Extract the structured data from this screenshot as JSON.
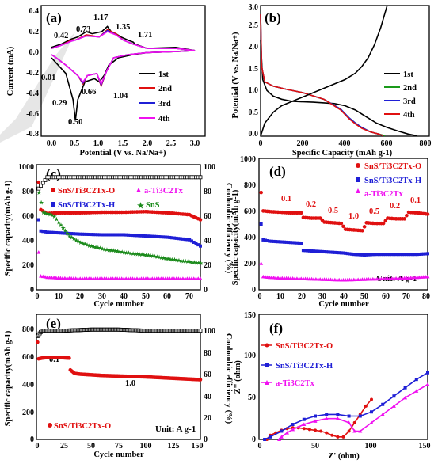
{
  "panels": {
    "a": {
      "label": "(a)",
      "xlabel": "Potential (V vs. Na/Na+)",
      "ylabel": "Current (mA)",
      "xticks": [
        "0.0",
        "0.5",
        "1.0",
        "1.5",
        "2.0",
        "2.5",
        "3.0"
      ],
      "yticks": [
        "0.4",
        "0.2",
        "0.0",
        "-0.2",
        "-0.4",
        "-0.6",
        "-0.8"
      ],
      "peak_labels": [
        "0.42",
        "0.73",
        "1.17",
        "1.35",
        "1.71",
        "0.01",
        "0.29",
        "0.50",
        "0.66",
        "1.04"
      ],
      "legend": [
        "1st",
        "2nd",
        "3rd",
        "4th"
      ]
    },
    "b": {
      "label": "(b)",
      "xlabel": "Specific Capacity (mAh g-1)",
      "ylabel": "Potential (V vs. Na/Na+)",
      "xticks": [
        "0",
        "200",
        "400",
        "600",
        "800"
      ],
      "yticks": [
        "0.0",
        "0.5",
        "1.0",
        "1.5",
        "2.0",
        "2.5",
        "3.0"
      ],
      "legend": [
        "1st",
        "2nd",
        "3rd",
        "4th"
      ]
    },
    "c": {
      "label": "(c)",
      "xlabel": "Cycle number",
      "ylabel": "Specific capacity(mAh g-1)",
      "ylabel2": "Coulombic efficiency (%)",
      "xticks": [
        "0",
        "10",
        "20",
        "30",
        "40",
        "50",
        "60",
        "70"
      ],
      "yticks": [
        "0",
        "200",
        "400",
        "600",
        "800",
        "1000"
      ],
      "y2ticks": [
        "0",
        "20",
        "40",
        "60",
        "80",
        "100"
      ],
      "legend": [
        "SnS/Ti3C2Tx-O",
        "a-Ti3C2Tx",
        "SnS/Ti3C2Tx-H",
        "SnS"
      ]
    },
    "d": {
      "label": "(d)",
      "xlabel": "Cycle number",
      "ylabel": "Specific capacity(mAh g-1)",
      "xticks": [
        "0",
        "10",
        "20",
        "30",
        "40",
        "50",
        "60",
        "70",
        "80"
      ],
      "yticks": [
        "0",
        "200",
        "400",
        "600",
        "800",
        "1000"
      ],
      "legend": [
        "SnS/Ti3C2Tx-O",
        "SnS/Ti3C2Tx-H",
        "a-Ti3C2Tx"
      ],
      "rates": [
        "0.1",
        "0.2",
        "0.5",
        "1.0",
        "0.5",
        "0.2",
        "0.1"
      ],
      "unit": "Unit: A g-1"
    },
    "e": {
      "label": "(e)",
      "xlabel": "Cycle number",
      "ylabel": "Specific capacity(mAh g-1)",
      "ylabel2": "Coulombic efficiency (%)",
      "xticks": [
        "0",
        "25",
        "50",
        "75",
        "100",
        "125",
        "150"
      ],
      "yticks": [
        "0",
        "200",
        "400",
        "600",
        "800"
      ],
      "y2ticks": [
        "0",
        "20",
        "40",
        "60",
        "80",
        "100"
      ],
      "rates": [
        "0.1",
        "1.0"
      ],
      "legend": [
        "SnS/Ti3C2Tx-O"
      ],
      "unit": "Unit: A g-1"
    },
    "f": {
      "label": "(f)",
      "xlabel": "Z' (ohm)",
      "ylabel": "-Z'' (ohm)",
      "xticks": [
        "0",
        "50",
        "100",
        "150"
      ],
      "yticks": [
        "0",
        "50",
        "100",
        "150"
      ],
      "legend": [
        "SnS/Ti3C2Tx-O",
        "SnS/Ti3C2Tx-H",
        "a-Ti3C2Tx"
      ]
    }
  },
  "colors": {
    "c1": "#000000",
    "c2": "#1a9a1a",
    "c3": "#1f1fd6",
    "c4": "#e01010",
    "pink": "#f010f0",
    "green": "#1a8a1a"
  },
  "chart_data": [
    {
      "type": "line",
      "panel": "a",
      "xlim": [
        -0.2,
        3.0
      ],
      "ylim": [
        -0.8,
        0.45
      ],
      "series": [
        {
          "name": "1st",
          "x": [
            0.0,
            0.1,
            0.3,
            0.45,
            0.5,
            0.55,
            0.7,
            0.9,
            1.0,
            1.1,
            1.2,
            1.4,
            1.7,
            2.0,
            2.6,
            3.0,
            2.6,
            2.0,
            1.75,
            1.71,
            1.6,
            1.45,
            1.35,
            1.25,
            1.17,
            1.05,
            0.85,
            0.73,
            0.55,
            0.42,
            0.2,
            0.0
          ],
          "y": [
            -0.05,
            -0.1,
            -0.2,
            -0.45,
            -0.65,
            -0.45,
            -0.28,
            -0.25,
            -0.28,
            -0.22,
            -0.12,
            -0.05,
            -0.02,
            0.0,
            0.01,
            0.02,
            0.05,
            0.04,
            0.08,
            0.1,
            0.12,
            0.15,
            0.18,
            0.2,
            0.25,
            0.2,
            0.18,
            0.2,
            0.15,
            0.13,
            0.08,
            0.05
          ]
        },
        {
          "name": "2nd",
          "x": [
            0.0,
            0.1,
            0.3,
            0.45,
            0.55,
            0.66,
            0.75,
            0.95,
            1.04,
            1.15,
            1.3,
            1.6,
            2.0,
            2.6,
            3.0,
            2.6,
            2.0,
            1.71,
            1.5,
            1.35,
            1.17,
            1.0,
            0.73,
            0.5,
            0.42,
            0.2,
            0.0
          ],
          "y": [
            -0.02,
            -0.05,
            -0.12,
            -0.18,
            -0.22,
            -0.3,
            -0.22,
            -0.2,
            -0.32,
            -0.18,
            -0.05,
            -0.02,
            0.0,
            0.01,
            0.02,
            0.04,
            0.04,
            0.08,
            0.12,
            0.18,
            0.22,
            0.15,
            0.17,
            0.12,
            0.12,
            0.07,
            0.04
          ]
        },
        {
          "name": "3rd",
          "x": [
            0.0,
            0.1,
            0.3,
            0.45,
            0.55,
            0.66,
            0.75,
            0.95,
            1.04,
            1.15,
            1.3,
            1.6,
            2.0,
            2.6,
            3.0,
            2.6,
            2.0,
            1.71,
            1.5,
            1.35,
            1.17,
            1.0,
            0.73,
            0.5,
            0.42,
            0.2,
            0.0
          ],
          "y": [
            -0.02,
            -0.05,
            -0.12,
            -0.18,
            -0.22,
            -0.29,
            -0.22,
            -0.2,
            -0.31,
            -0.18,
            -0.05,
            -0.02,
            0.0,
            0.01,
            0.02,
            0.04,
            0.04,
            0.08,
            0.12,
            0.17,
            0.21,
            0.15,
            0.16,
            0.12,
            0.11,
            0.07,
            0.04
          ]
        },
        {
          "name": "4th",
          "x": [
            0.0,
            0.1,
            0.3,
            0.45,
            0.55,
            0.66,
            0.75,
            0.95,
            1.04,
            1.15,
            1.3,
            1.6,
            2.0,
            2.6,
            3.0,
            2.6,
            2.0,
            1.71,
            1.5,
            1.35,
            1.17,
            1.0,
            0.73,
            0.5,
            0.42,
            0.2,
            0.0
          ],
          "y": [
            -0.02,
            -0.05,
            -0.12,
            -0.18,
            -0.22,
            -0.28,
            -0.22,
            -0.2,
            -0.3,
            -0.18,
            -0.05,
            -0.02,
            0.0,
            0.01,
            0.02,
            0.04,
            0.04,
            0.08,
            0.12,
            0.17,
            0.2,
            0.15,
            0.16,
            0.12,
            0.11,
            0.07,
            0.04
          ]
        }
      ]
    },
    {
      "type": "line",
      "panel": "b",
      "xlim": [
        0,
        800
      ],
      "ylim": [
        0,
        3.0
      ],
      "series": [
        {
          "name": "1st",
          "x": [
            0,
            10,
            30,
            60,
            100,
            150,
            250,
            350,
            400,
            450,
            500,
            550,
            600,
            650,
            700,
            740
          ],
          "y": [
            2.2,
            1.3,
            1.05,
            0.92,
            0.85,
            0.8,
            0.78,
            0.75,
            0.7,
            0.6,
            0.45,
            0.3,
            0.2,
            0.12,
            0.05,
            0.01
          ]
        },
        {
          "name": "2nd",
          "x": [
            0,
            5,
            20,
            60,
            120,
            200,
            300,
            380,
            420,
            450,
            480,
            520,
            560,
            590
          ],
          "y": [
            2.8,
            1.6,
            1.25,
            1.15,
            1.08,
            1.0,
            0.85,
            0.62,
            0.42,
            0.3,
            0.2,
            0.1,
            0.05,
            0.01
          ]
        },
        {
          "name": "3rd",
          "x": [
            0,
            5,
            20,
            60,
            120,
            200,
            300,
            380,
            420,
            450,
            480,
            520,
            560,
            580
          ],
          "y": [
            2.8,
            1.6,
            1.25,
            1.15,
            1.08,
            1.0,
            0.85,
            0.62,
            0.42,
            0.3,
            0.2,
            0.1,
            0.05,
            0.01
          ]
        },
        {
          "name": "4th",
          "x": [
            0,
            5,
            20,
            60,
            120,
            200,
            300,
            380,
            420,
            450,
            480,
            520,
            560,
            580
          ],
          "y": [
            2.8,
            1.6,
            1.25,
            1.15,
            1.08,
            1.0,
            0.85,
            0.6,
            0.4,
            0.28,
            0.18,
            0.1,
            0.05,
            0.01
          ]
        },
        {
          "name": "1st charge",
          "x": [
            0,
            20,
            60,
            100,
            150,
            200,
            250,
            300,
            350,
            400,
            450,
            480,
            510,
            540,
            570,
            600
          ],
          "y": [
            0.0,
            0.3,
            0.55,
            0.7,
            0.8,
            0.9,
            1.0,
            1.1,
            1.2,
            1.3,
            1.45,
            1.6,
            1.8,
            2.1,
            2.5,
            3.0
          ]
        }
      ]
    },
    {
      "type": "scatter",
      "panel": "c",
      "xlim": [
        0,
        75
      ],
      "ylim": [
        0,
        1000
      ],
      "y2lim": [
        0,
        110
      ],
      "series": [
        {
          "name": "SnS/Ti3C2Tx-O",
          "x": [
            1,
            2,
            5,
            10,
            20,
            30,
            40,
            50,
            60,
            70,
            75
          ],
          "y": [
            860,
            640,
            610,
            615,
            615,
            620,
            620,
            625,
            615,
            600,
            560
          ]
        },
        {
          "name": "SnS/Ti3C2Tx-H",
          "x": [
            1,
            2,
            5,
            10,
            20,
            30,
            40,
            50,
            60,
            70,
            75
          ],
          "y": [
            560,
            470,
            460,
            455,
            445,
            440,
            440,
            430,
            420,
            400,
            350
          ]
        },
        {
          "name": "a-Ti3C2Tx",
          "x": [
            1,
            2,
            5,
            10,
            20,
            30,
            40,
            50,
            60,
            70,
            75
          ],
          "y": [
            300,
            110,
            100,
            95,
            90,
            90,
            90,
            90,
            90,
            90,
            90
          ]
        },
        {
          "name": "SnS",
          "x": [
            1,
            3,
            5,
            8,
            10,
            15,
            20,
            25,
            30,
            40,
            50,
            60,
            70,
            75
          ],
          "y": [
            780,
            620,
            610,
            590,
            540,
            430,
            380,
            350,
            330,
            300,
            280,
            250,
            225,
            215
          ]
        },
        {
          "name": "Coulombic efficiency",
          "x": [
            1,
            5,
            10,
            20,
            30,
            40,
            50,
            60,
            70,
            75
          ],
          "y": [
            89,
            99,
            99,
            99,
            99,
            99,
            99,
            99,
            99,
            99
          ]
        }
      ]
    },
    {
      "type": "scatter",
      "panel": "d",
      "xlim": [
        0,
        80
      ],
      "ylim": [
        0,
        1000
      ],
      "series": [
        {
          "name": "SnS/Ti3C2Tx-O",
          "x": [
            1,
            2,
            5,
            10,
            15,
            20,
            21,
            25,
            29,
            31,
            35,
            39,
            41,
            45,
            49,
            51,
            55,
            59,
            61,
            65,
            69,
            71,
            75,
            80
          ],
          "y": [
            740,
            600,
            595,
            590,
            585,
            585,
            550,
            545,
            545,
            515,
            510,
            505,
            460,
            455,
            450,
            510,
            505,
            505,
            545,
            540,
            540,
            590,
            585,
            575
          ]
        },
        {
          "name": "SnS/Ti3C2Tx-H",
          "x": [
            1,
            2,
            5,
            10,
            15,
            20,
            21,
            25,
            30,
            35,
            40,
            45,
            50,
            55,
            60,
            65,
            70,
            75,
            80
          ],
          "y": [
            500,
            380,
            370,
            365,
            360,
            355,
            300,
            295,
            290,
            285,
            280,
            270,
            265,
            270,
            270,
            270,
            270,
            270,
            275
          ]
        },
        {
          "name": "a-Ti3C2Tx",
          "x": [
            1,
            2,
            5,
            10,
            20,
            30,
            40,
            50,
            60,
            70,
            80
          ],
          "y": [
            200,
            100,
            95,
            90,
            85,
            80,
            75,
            80,
            85,
            90,
            100
          ]
        }
      ]
    },
    {
      "type": "scatter",
      "panel": "e",
      "xlim": [
        0,
        150
      ],
      "ylim": [
        0,
        900
      ],
      "y2lim": [
        0,
        115
      ],
      "series": [
        {
          "name": "SnS/Ti3C2Tx-O",
          "x": [
            1,
            2,
            5,
            10,
            20,
            30,
            31,
            35,
            40,
            60,
            80,
            100,
            125,
            150
          ],
          "y": [
            700,
            580,
            585,
            590,
            590,
            585,
            500,
            475,
            470,
            460,
            455,
            450,
            440,
            430
          ]
        },
        {
          "name": "Coulombic efficiency",
          "x": [
            1,
            5,
            25,
            50,
            75,
            100,
            125,
            150
          ],
          "y": [
            95,
            100,
            100,
            101,
            101,
            100,
            100,
            100
          ]
        }
      ]
    },
    {
      "type": "line",
      "panel": "f",
      "xlim": [
        0,
        150
      ],
      "ylim": [
        0,
        150
      ],
      "series": [
        {
          "name": "SnS/Ti3C2Tx-O",
          "x": [
            7,
            10,
            15,
            20,
            25,
            30,
            35,
            40,
            45,
            50,
            55,
            60,
            65,
            70,
            75,
            80,
            85,
            90,
            95,
            100
          ],
          "y": [
            0,
            5,
            8,
            11,
            13,
            14,
            14,
            13,
            12,
            11,
            10,
            8,
            5,
            3,
            3,
            10,
            20,
            30,
            40,
            48
          ]
        },
        {
          "name": "SnS/Ti3C2Tx-H",
          "x": [
            5,
            10,
            20,
            30,
            40,
            50,
            60,
            70,
            80,
            90,
            100,
            110,
            120,
            130,
            140,
            150
          ],
          "y": [
            0,
            3,
            10,
            18,
            24,
            28,
            30,
            30,
            28,
            28,
            33,
            42,
            52,
            62,
            72,
            80
          ]
        },
        {
          "name": "a-Ti3C2Tx",
          "x": [
            18,
            20,
            25,
            30,
            40,
            50,
            60,
            70,
            80,
            85,
            90,
            100,
            110,
            120,
            130,
            140,
            150
          ],
          "y": [
            0,
            3,
            8,
            12,
            18,
            22,
            25,
            25,
            20,
            10,
            10,
            20,
            30,
            40,
            50,
            58,
            66
          ]
        }
      ]
    }
  ]
}
